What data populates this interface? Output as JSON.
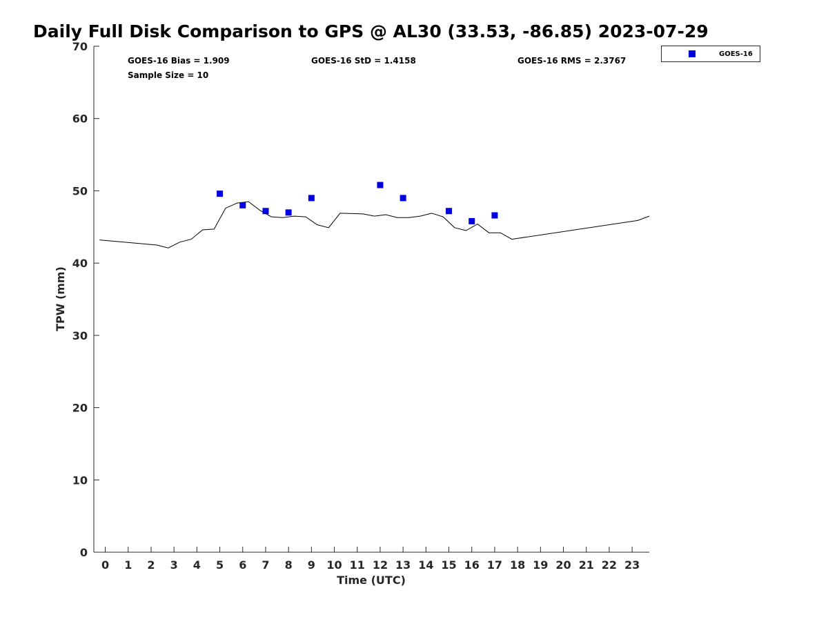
{
  "chart_data": {
    "type": "scatter",
    "title": "Daily Full Disk Comparison to GPS @ AL30 (33.53, -86.85) 2023-07-29",
    "xlabel": "Time (UTC)",
    "ylabel": "TPW (mm)",
    "xlim": [
      -0.5,
      23.75
    ],
    "ylim": [
      0,
      70
    ],
    "x_ticks": [
      0,
      1,
      2,
      3,
      4,
      5,
      6,
      7,
      8,
      9,
      10,
      11,
      12,
      13,
      14,
      15,
      16,
      17,
      18,
      19,
      20,
      21,
      22,
      23
    ],
    "y_ticks": [
      0,
      10,
      20,
      30,
      40,
      50,
      60,
      70
    ],
    "grid": false,
    "legend_position": "top-right, outside plot",
    "series": [
      {
        "name": "GOES-16",
        "type": "scatter",
        "marker": "square",
        "color": "#0000e0",
        "x": [
          5,
          6,
          7,
          8,
          9,
          12,
          13,
          15,
          16,
          17
        ],
        "y": [
          49.6,
          48.0,
          47.2,
          47.0,
          49.0,
          50.8,
          49.0,
          47.2,
          45.8,
          46.6
        ]
      },
      {
        "type": "line",
        "color": "#000000",
        "x": [
          -0.25,
          2.25,
          2.75,
          3.25,
          3.75,
          4.25,
          4.75,
          5.25,
          5.75,
          6.25,
          6.75,
          7.25,
          7.75,
          8.25,
          8.75,
          9.25,
          9.75,
          10.25,
          10.75,
          11.25,
          11.75,
          12.25,
          12.75,
          13.25,
          13.75,
          14.25,
          14.75,
          15.25,
          15.75,
          16.25,
          16.75,
          17.25,
          17.75,
          23.25,
          23.75
        ],
        "y": [
          43.2,
          42.5,
          42.1,
          42.9,
          43.3,
          44.6,
          44.7,
          47.6,
          48.3,
          48.5,
          47.3,
          46.4,
          46.3,
          46.5,
          46.4,
          45.3,
          44.9,
          46.9,
          46.85,
          46.8,
          46.5,
          46.7,
          46.3,
          46.3,
          46.5,
          46.9,
          46.4,
          44.9,
          44.5,
          45.4,
          44.2,
          44.2,
          43.3,
          45.9,
          46.5
        ]
      }
    ],
    "annotations": {
      "bias": "GOES-16 Bias = 1.909",
      "std": "GOES-16 StD = 1.4158",
      "rms": "GOES-16 RMS = 2.3767",
      "sample_size": "Sample Size = 10"
    },
    "legend": {
      "label": "GOES-16"
    }
  }
}
